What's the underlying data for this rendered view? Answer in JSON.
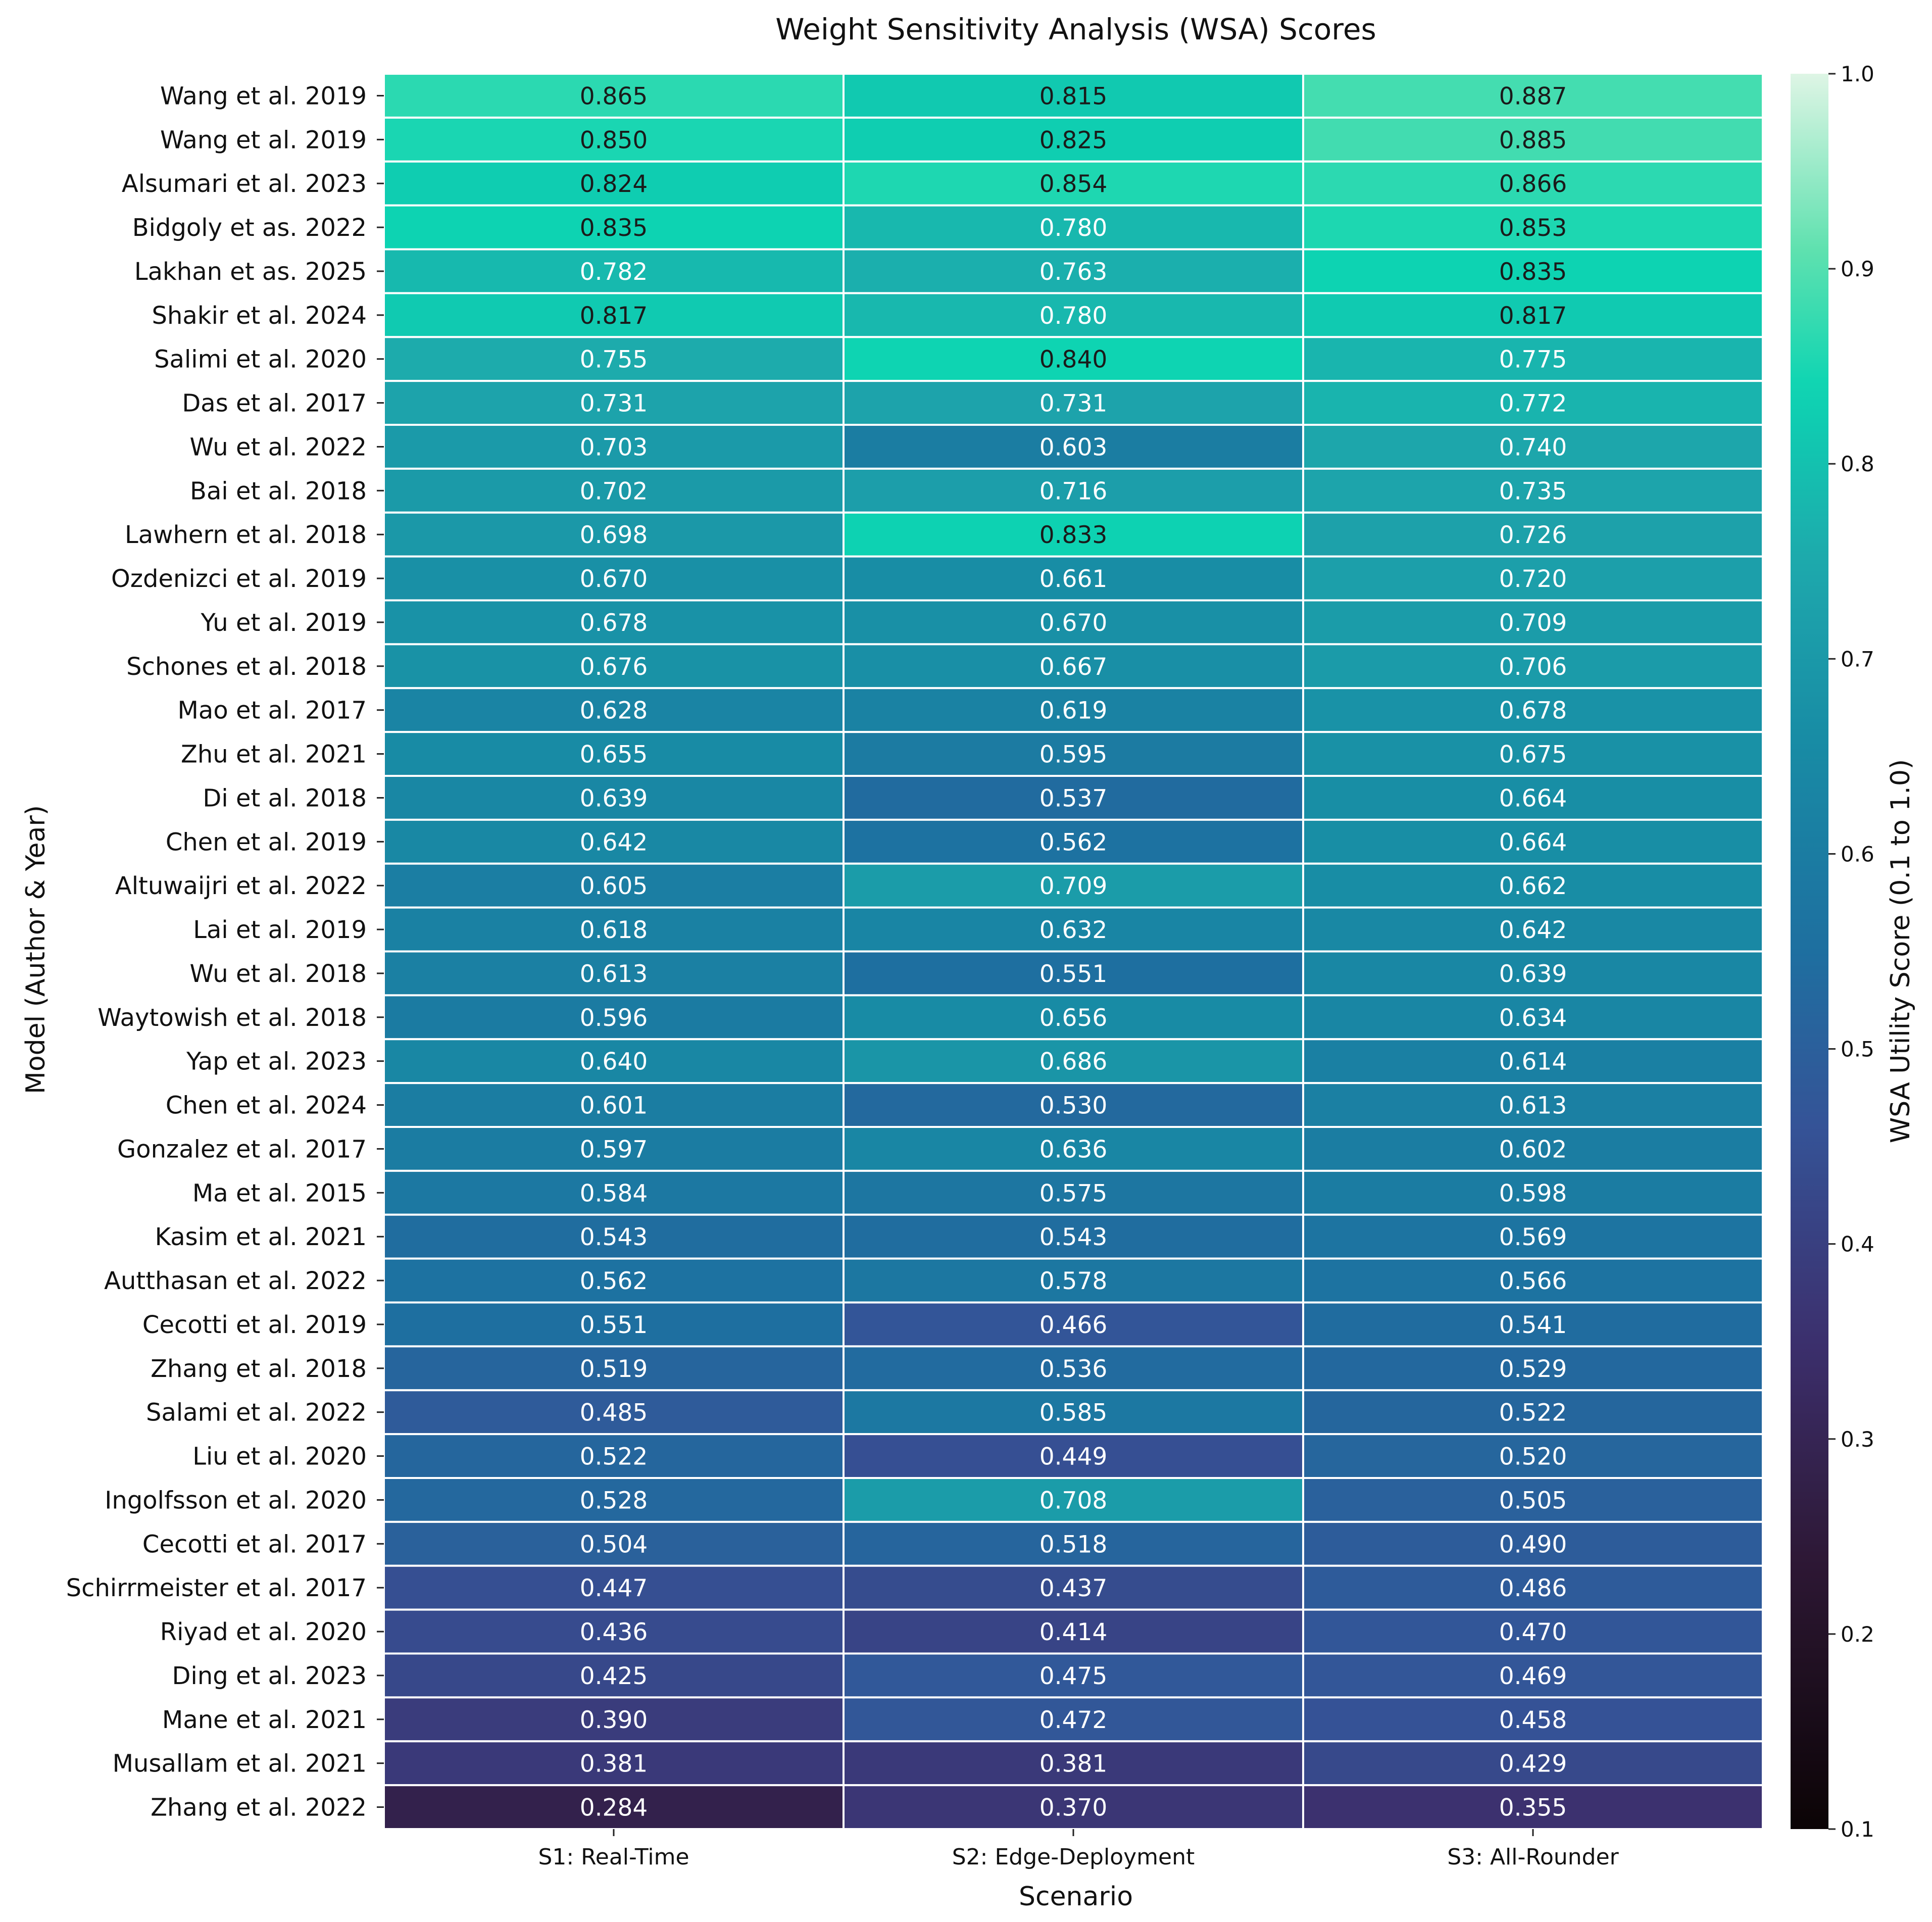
{
  "chart_data": {
    "type": "heatmap",
    "title": "Weight Sensitivity Analysis (WSA) Scores",
    "xlabel": "Scenario",
    "ylabel": "Model (Author & Year)",
    "colorbar_label": "WSA Utility Score (0.1 to 1.0)",
    "colorbar_range": [
      0.1,
      1.0
    ],
    "colorbar_ticks": [
      "0.1",
      "0.2",
      "0.3",
      "0.4",
      "0.5",
      "0.6",
      "0.7",
      "0.8",
      "0.9",
      "1.0"
    ],
    "colormap": "mako",
    "value_format": "3 decimals",
    "columns": [
      "S1: Real-Time",
      "S2: Edge-Deployment",
      "S3: All-Rounder"
    ],
    "rows": [
      "Wang et al. 2019",
      "Wang et al. 2019",
      "Alsumari et al. 2023",
      "Bidgoly et as. 2022",
      "Lakhan et as. 2025",
      "Shakir et al. 2024",
      "Salimi et al. 2020",
      "Das et al. 2017",
      "Wu et al. 2022",
      "Bai et al. 2018",
      "Lawhern et al. 2018",
      "Ozdenizci et al. 2019",
      "Yu et al. 2019",
      "Schones et al. 2018",
      "Mao et al. 2017",
      "Zhu et al. 2021",
      "Di et al. 2018",
      "Chen et al. 2019",
      "Altuwaijri et al. 2022",
      "Lai et al. 2019",
      "Wu et al. 2018",
      "Waytowish et al. 2018",
      "Yap et al. 2023",
      "Chen et al. 2024",
      "Gonzalez et al. 2017",
      "Ma et al. 2015",
      "Kasim et al. 2021",
      "Autthasan et al. 2022",
      "Cecotti et al. 2019",
      "Zhang et al. 2018",
      "Salami et al. 2022",
      "Liu et al. 2020",
      "Ingolfsson et al. 2020",
      "Cecotti et al. 2017",
      "Schirrmeister et al. 2017",
      "Riyad et al. 2020",
      "Ding et al. 2023",
      "Mane et al. 2021",
      "Musallam et al. 2021",
      "Zhang et al. 2022"
    ],
    "values": [
      [
        0.865,
        0.815,
        0.887
      ],
      [
        0.85,
        0.825,
        0.885
      ],
      [
        0.824,
        0.854,
        0.866
      ],
      [
        0.835,
        0.78,
        0.853
      ],
      [
        0.782,
        0.763,
        0.835
      ],
      [
        0.817,
        0.78,
        0.817
      ],
      [
        0.755,
        0.84,
        0.775
      ],
      [
        0.731,
        0.731,
        0.772
      ],
      [
        0.703,
        0.603,
        0.74
      ],
      [
        0.702,
        0.716,
        0.735
      ],
      [
        0.698,
        0.833,
        0.726
      ],
      [
        0.67,
        0.661,
        0.72
      ],
      [
        0.678,
        0.67,
        0.709
      ],
      [
        0.676,
        0.667,
        0.706
      ],
      [
        0.628,
        0.619,
        0.678
      ],
      [
        0.655,
        0.595,
        0.675
      ],
      [
        0.639,
        0.537,
        0.664
      ],
      [
        0.642,
        0.562,
        0.664
      ],
      [
        0.605,
        0.709,
        0.662
      ],
      [
        0.618,
        0.632,
        0.642
      ],
      [
        0.613,
        0.551,
        0.639
      ],
      [
        0.596,
        0.656,
        0.634
      ],
      [
        0.64,
        0.686,
        0.614
      ],
      [
        0.601,
        0.53,
        0.613
      ],
      [
        0.597,
        0.636,
        0.602
      ],
      [
        0.584,
        0.575,
        0.598
      ],
      [
        0.543,
        0.543,
        0.569
      ],
      [
        0.562,
        0.578,
        0.566
      ],
      [
        0.551,
        0.466,
        0.541
      ],
      [
        0.519,
        0.536,
        0.529
      ],
      [
        0.485,
        0.585,
        0.522
      ],
      [
        0.522,
        0.449,
        0.52
      ],
      [
        0.528,
        0.708,
        0.505
      ],
      [
        0.504,
        0.518,
        0.49
      ],
      [
        0.447,
        0.437,
        0.486
      ],
      [
        0.436,
        0.414,
        0.47
      ],
      [
        0.425,
        0.475,
        0.469
      ],
      [
        0.39,
        0.472,
        0.458
      ],
      [
        0.381,
        0.381,
        0.429
      ],
      [
        0.284,
        0.37,
        0.355
      ]
    ]
  }
}
